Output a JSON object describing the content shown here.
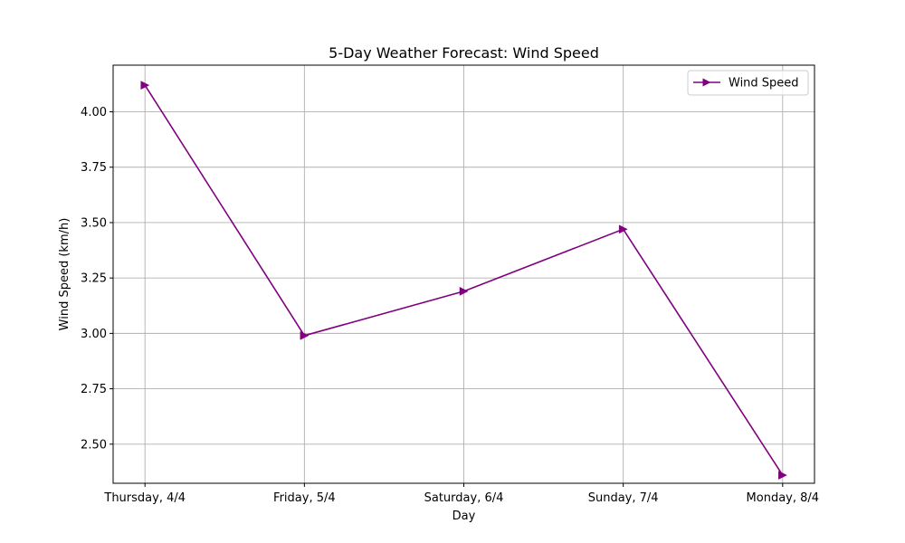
{
  "chart_data": {
    "type": "line",
    "title": "5-Day Weather Forecast: Wind Speed",
    "xlabel": "Day",
    "ylabel": "Wind Speed (km/h)",
    "categories": [
      "Thursday, 4/4",
      "Friday, 5/4",
      "Saturday, 6/4",
      "Sunday, 7/4",
      "Monday, 8/4"
    ],
    "series": [
      {
        "name": "Wind Speed",
        "values": [
          4.12,
          2.99,
          3.19,
          3.47,
          2.36
        ],
        "color": "#800080",
        "marker": "triangle-right"
      }
    ],
    "yticks": [
      2.5,
      2.75,
      3.0,
      3.25,
      3.5,
      3.75,
      4.0
    ],
    "ytick_labels": [
      "2.50",
      "2.75",
      "3.00",
      "3.25",
      "3.50",
      "3.75",
      "4.00"
    ],
    "ylim": [
      2.3235,
      4.2105
    ],
    "grid": true,
    "legend_position": "upper right"
  }
}
